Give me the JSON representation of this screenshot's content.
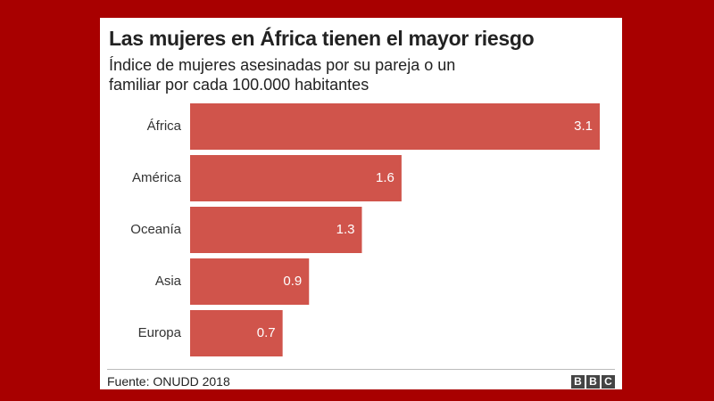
{
  "chart_data": {
    "type": "bar",
    "orientation": "horizontal",
    "title": "Las mujeres en África tienen el mayor riesgo",
    "subtitle": "Índice de mujeres asesinadas por su pareja o un familiar por cada 100.000 habitantes",
    "categories": [
      "África",
      "América",
      "Oceanía",
      "Asia",
      "Europa"
    ],
    "values": [
      3.1,
      1.6,
      1.3,
      0.9,
      0.7
    ],
    "color": "#d0544b",
    "source": "Fuente: ONUDD 2018",
    "logo": [
      "B",
      "B",
      "C"
    ]
  }
}
